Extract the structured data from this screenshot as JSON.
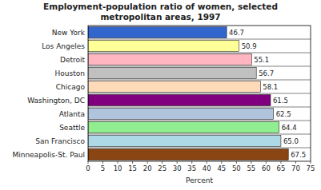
{
  "chart_data": {
    "type": "bar",
    "orientation": "horizontal",
    "title": "Employment-population ratio of women, selected\nmetropolitan areas, 1997",
    "categories": [
      "New York",
      "Los Angeles",
      "Detroit",
      "Houston",
      "Chicago",
      "Washington, DC",
      "Atlanta",
      "Seattle",
      "San Francisco",
      "Minneapolis-St. Paul"
    ],
    "values": [
      46.7,
      50.9,
      55.1,
      56.7,
      58.1,
      61.5,
      62.5,
      64.4,
      65.0,
      67.5
    ],
    "value_labels": [
      "46.7",
      "50.9",
      "55.1",
      "56.7",
      "58.1",
      "61.5",
      "62.5",
      "64.4",
      "65.0",
      "67.5"
    ],
    "colors": [
      "#3366CC",
      "#FFFF99",
      "#FFB6C1",
      "#C0C0C0",
      "#FFDAB9",
      "#800080",
      "#B0C4DE",
      "#90EE90",
      "#ADD8E6",
      "#8B4513"
    ],
    "xlabel": "Percent",
    "xlim": [
      0,
      75
    ],
    "xticks": [
      0,
      5,
      10,
      15,
      20,
      25,
      30,
      35,
      40,
      45,
      50,
      55,
      60,
      65,
      70,
      75
    ],
    "data_labels": true,
    "grid": false
  }
}
